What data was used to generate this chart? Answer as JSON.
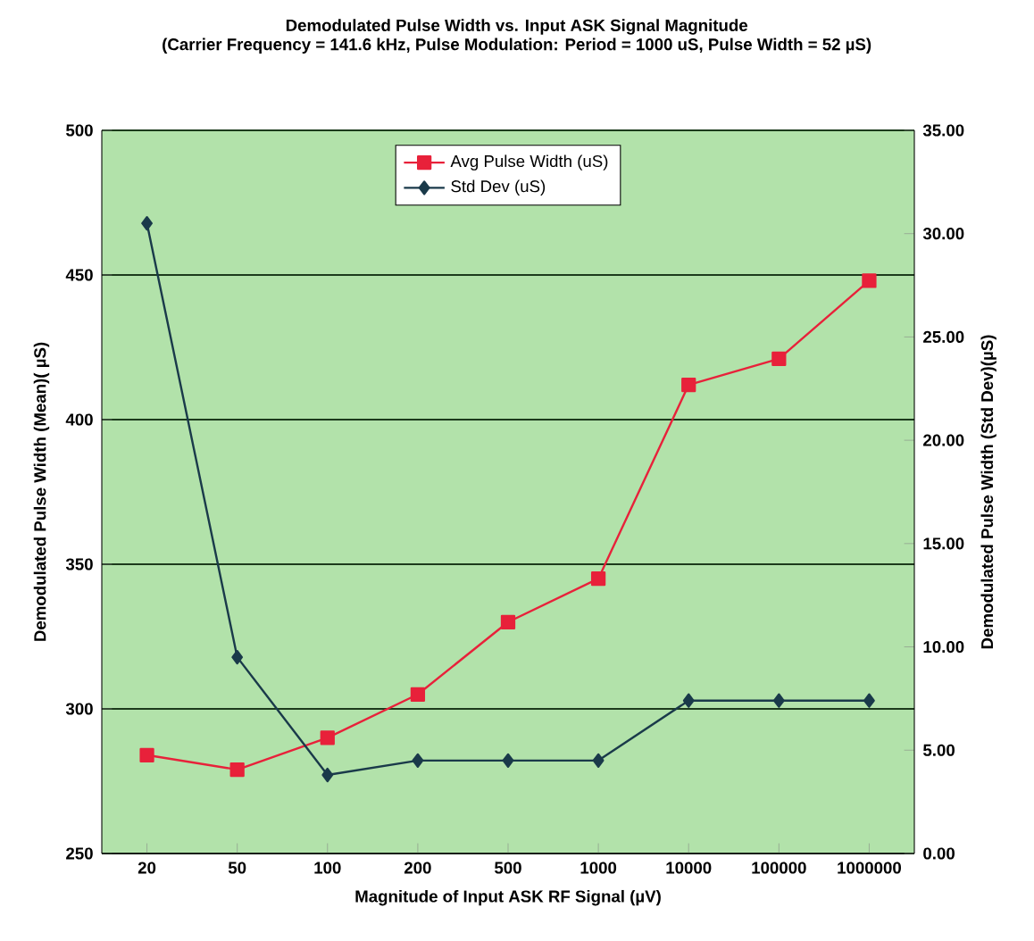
{
  "chart_data": {
    "type": "line",
    "title": "Demodulated Pulse Width vs. Input ASK Signal Magnitude",
    "subtitle": "(Carrier Frequency = 141.6 kHz, Pulse Modulation: Period = 1000 uS, Pulse Width = 52 µS)",
    "xlabel": "Magnitude of Input ASK RF Signal  (µV)",
    "ylabel": "Demodulated Pulse Width (Mean)( µS)",
    "y2label": "Demodulated Pulse Width (Std Dev)(µS)",
    "categories": [
      "20",
      "50",
      "100",
      "200",
      "500",
      "1000",
      "10000",
      "100000",
      "1000000"
    ],
    "series": [
      {
        "name": "Avg Pulse Width (uS)",
        "color": "#e8213a",
        "marker": "square",
        "values": [
          284,
          279,
          290,
          305,
          330,
          345,
          412,
          421,
          448
        ]
      },
      {
        "name": "Std Dev (uS)",
        "color": "#1a3a4a",
        "marker": "diamond",
        "axis": "y2",
        "values": [
          30.5,
          9.5,
          3.8,
          4.5,
          4.5,
          4.5,
          7.4,
          7.4,
          7.4
        ]
      }
    ],
    "ylim": [
      250,
      500
    ],
    "yticks": [
      250,
      300,
      350,
      400,
      450,
      500
    ],
    "y2lim": [
      0,
      35
    ],
    "y2ticks": [
      {
        "value": 0,
        "label": "0.00"
      },
      {
        "value": 5,
        "label": "5.00"
      },
      {
        "value": 10,
        "label": "10.00"
      },
      {
        "value": 15,
        "label": "15.00"
      },
      {
        "value": 20,
        "label": "20.00"
      },
      {
        "value": 25,
        "label": "25.00"
      },
      {
        "value": 30,
        "label": "30.00"
      },
      {
        "value": 35,
        "label": "35.00"
      }
    ],
    "grid": "y",
    "legend": "top",
    "line_style": "solid"
  }
}
